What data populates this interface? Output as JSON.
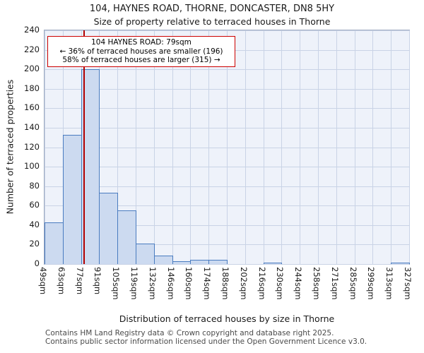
{
  "title": {
    "line1": "104, HAYNES ROAD, THORNE, DONCASTER, DN8 5HY",
    "line2": "Size of property relative to terraced houses in Thorne"
  },
  "chart_data": {
    "type": "bar",
    "title": "104, HAYNES ROAD, THORNE, DONCASTER, DN8 5HY",
    "subtitle": "Size of property relative to terraced houses in Thorne",
    "xlabel": "Distribution of terraced houses by size in Thorne",
    "ylabel": "Number of terraced properties",
    "ylim": [
      0,
      240
    ],
    "yticks": [
      0,
      20,
      40,
      60,
      80,
      100,
      120,
      140,
      160,
      180,
      200,
      220,
      240
    ],
    "bin_edges_sqm": [
      49,
      63,
      77,
      91,
      105,
      119,
      132,
      146,
      160,
      174,
      188,
      202,
      216,
      230,
      244,
      258,
      271,
      285,
      299,
      313,
      327
    ],
    "tick_labels": [
      "49sqm",
      "63sqm",
      "77sqm",
      "91sqm",
      "105sqm",
      "119sqm",
      "132sqm",
      "146sqm",
      "160sqm",
      "174sqm",
      "188sqm",
      "202sqm",
      "216sqm",
      "230sqm",
      "244sqm",
      "258sqm",
      "271sqm",
      "285sqm",
      "299sqm",
      "313sqm",
      "327sqm"
    ],
    "values": [
      43,
      133,
      200,
      73,
      55,
      21,
      9,
      3,
      4,
      4,
      0,
      0,
      1,
      0,
      0,
      0,
      0,
      0,
      0,
      1
    ],
    "grid": true,
    "legend": false,
    "marker": {
      "value_sqm": 79,
      "label": "104 HAYNES ROAD: 79sqm"
    },
    "annotation": {
      "line1": "104 HAYNES ROAD: 79sqm",
      "line2": "← 36% of terraced houses are smaller (196)",
      "line3": "58% of terraced houses are larger (315) →"
    },
    "colors": {
      "bar_fill": "#ccdaf0",
      "bar_border": "#4a7cc0",
      "grid": "#c9d3e6",
      "plot_bg": "#eef2fa",
      "marker_line": "#b30000",
      "annotation_border": "#cc0000"
    }
  },
  "footer": {
    "line1": "Contains HM Land Registry data © Crown copyright and database right 2025.",
    "line2": "Contains public sector information licensed under the Open Government Licence v3.0."
  }
}
